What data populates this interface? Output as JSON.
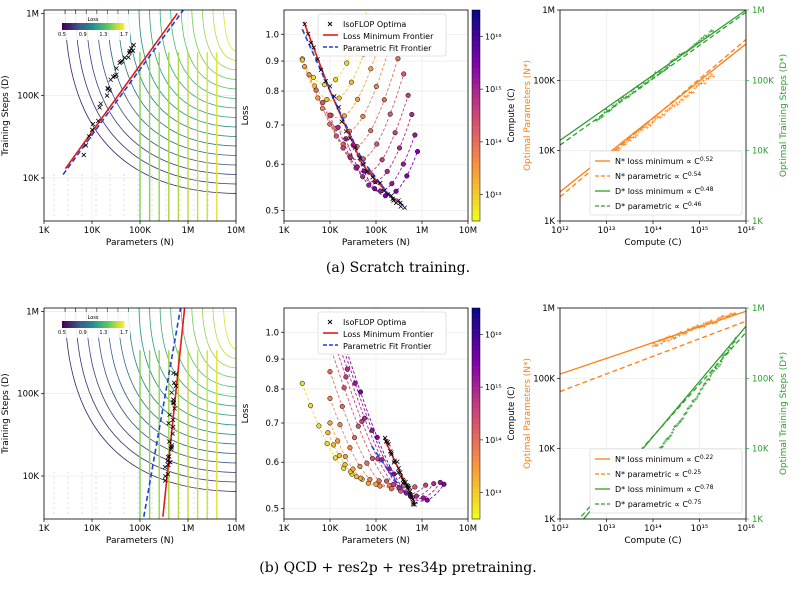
{
  "captions": {
    "a": "(a) Scratch training.",
    "b": "(b) QCD + res2p + res34p pretraining."
  },
  "styles": {
    "red": "#e41a1c",
    "blue": "#1f3fd6",
    "orange": "#ff7f0e",
    "green": "#2ca02c"
  },
  "chart_data": [
    {
      "id": "a-left",
      "type": "contour",
      "xlabel": "Parameters (N)",
      "ylabel": "Training Steps (D)",
      "xscale": "log",
      "yscale": "log",
      "xlim": [
        1000,
        10000000
      ],
      "ylim": [
        3000,
        1100000
      ],
      "xticks": [
        {
          "v": 1000,
          "t": "1K"
        },
        {
          "v": 10000,
          "t": "10K"
        },
        {
          "v": 100000,
          "t": "100K"
        },
        {
          "v": 1000000,
          "t": "1M"
        },
        {
          "v": 10000000,
          "t": "10M"
        }
      ],
      "yticks": [
        {
          "v": 10000,
          "t": "10K"
        },
        {
          "v": 100000,
          "t": "100K"
        },
        {
          "v": 1000000,
          "t": "1M"
        }
      ],
      "colorbar": {
        "title": "Loss",
        "ticks": [
          "0.5",
          "0.9",
          "1.3",
          "1.7"
        ]
      },
      "frontier_red": [
        [
          2800,
          13000
        ],
        [
          600000,
          1000000
        ]
      ],
      "frontier_blue": [
        [
          2500,
          11000
        ],
        [
          800000,
          1100000
        ]
      ],
      "points_center": [
        [
          6000,
          20000
        ],
        [
          20000,
          100000
        ],
        [
          40000,
          250000
        ],
        [
          80000,
          400000
        ]
      ]
    },
    {
      "id": "a-mid",
      "type": "scatter",
      "xlabel": "Parameters (N)",
      "ylabel": "Loss",
      "xscale": "log",
      "yscale": "log",
      "xlim": [
        1000,
        10000000
      ],
      "ylim": [
        0.48,
        1.1
      ],
      "xticks": [
        {
          "v": 1000,
          "t": "1K"
        },
        {
          "v": 10000,
          "t": "10K"
        },
        {
          "v": 100000,
          "t": "100K"
        },
        {
          "v": 1000000,
          "t": "1M"
        },
        {
          "v": 10000000,
          "t": "10M"
        }
      ],
      "yticks": [
        {
          "v": 0.5,
          "t": "0.5"
        },
        {
          "v": 0.6,
          "t": "0.6"
        },
        {
          "v": 0.7,
          "t": "0.7"
        },
        {
          "v": 0.8,
          "t": "0.8"
        },
        {
          "v": 0.9,
          "t": "0.9"
        },
        {
          "v": 1.0,
          "t": "1.0"
        }
      ],
      "legend": [
        "IsoFLOP Optima",
        "Loss Minimum Frontier",
        "Parametric Fit Frontier"
      ],
      "colorbar": {
        "title": "Compute (C)",
        "ticks": [
          "10¹³",
          "10¹⁴",
          "10¹⁵",
          "10¹⁶"
        ],
        "range_exp": [
          12.5,
          16.5
        ]
      },
      "frontier_red": [
        [
          2700,
          1.05
        ],
        [
          10000,
          0.8
        ],
        [
          50000,
          0.6
        ],
        [
          200000,
          0.53
        ],
        [
          400000,
          0.51
        ]
      ],
      "frontier_blue": [
        [
          2500,
          1.02
        ],
        [
          10000,
          0.8
        ],
        [
          50000,
          0.61
        ],
        [
          200000,
          0.53
        ],
        [
          400000,
          0.51
        ]
      ],
      "isoflops": [
        {
          "c": 12.8,
          "x0": 2500,
          "x1": 70000,
          "xmin": 8000,
          "ymin": 0.82,
          "k": 0.42
        },
        {
          "c": 13.1,
          "x0": 2500,
          "x1": 100000,
          "xmin": 11000,
          "ymin": 0.77,
          "k": 0.42
        },
        {
          "c": 13.4,
          "x0": 2800,
          "x1": 150000,
          "xmin": 15000,
          "ymin": 0.72,
          "k": 0.42
        },
        {
          "c": 13.7,
          "x0": 3500,
          "x1": 200000,
          "xmin": 21000,
          "ymin": 0.68,
          "k": 0.42
        },
        {
          "c": 14.0,
          "x0": 5000,
          "x1": 300000,
          "xmin": 30000,
          "ymin": 0.64,
          "k": 0.42
        },
        {
          "c": 14.3,
          "x0": 7000,
          "x1": 400000,
          "xmin": 42000,
          "ymin": 0.61,
          "k": 0.42
        },
        {
          "c": 14.6,
          "x0": 10000,
          "x1": 500000,
          "xmin": 60000,
          "ymin": 0.58,
          "k": 0.42
        },
        {
          "c": 14.9,
          "x0": 15000,
          "x1": 600000,
          "xmin": 85000,
          "ymin": 0.56,
          "k": 0.42
        },
        {
          "c": 15.2,
          "x0": 22000,
          "x1": 700000,
          "xmin": 120000,
          "ymin": 0.54,
          "k": 0.42
        },
        {
          "c": 15.5,
          "x0": 32000,
          "x1": 800000,
          "xmin": 170000,
          "ymin": 0.53,
          "k": 0.42
        }
      ]
    },
    {
      "id": "a-right",
      "type": "line",
      "xlabel": "Compute (C)",
      "ylabel": "Optimal Parameters (N*)",
      "ylabel_right": "Optimal Training Steps (D*)",
      "xscale": "log",
      "yscale": "log",
      "xlim": [
        1000000000000,
        10000000000000000
      ],
      "ylim": [
        1000,
        1000000
      ],
      "xticks": [
        {
          "v": 1000000000000,
          "t": "10¹²"
        },
        {
          "v": 10000000000000,
          "t": "10¹³"
        },
        {
          "v": 100000000000000,
          "t": "10¹⁴"
        },
        {
          "v": 1000000000000000,
          "t": "10¹⁵"
        },
        {
          "v": 10000000000000000,
          "t": "10¹⁶"
        }
      ],
      "yticks": [
        {
          "v": 1000,
          "t": "1K"
        },
        {
          "v": 10000,
          "t": "10K"
        },
        {
          "v": 100000,
          "t": "100K"
        },
        {
          "v": 1000000,
          "t": "1M"
        }
      ],
      "yticks_right": [
        {
          "v": 1000,
          "t": "1K"
        },
        {
          "v": 10000,
          "t": "10K"
        },
        {
          "v": 100000,
          "t": "100K"
        },
        {
          "v": 1000000,
          "t": "1M"
        }
      ],
      "legend": [
        {
          "label": "N* loss minimum  ∝ C",
          "exp": "0.52",
          "color": "orange",
          "dash": false
        },
        {
          "label": "N* parametric  ∝ C",
          "exp": "0.54",
          "color": "orange",
          "dash": true
        },
        {
          "label": "D* loss minimum  ∝ C",
          "exp": "0.48",
          "color": "green",
          "dash": false
        },
        {
          "label": "D* parametric  ∝ C",
          "exp": "0.46",
          "color": "green",
          "dash": true
        }
      ],
      "series": [
        {
          "color": "orange",
          "dash": false,
          "points": [
            [
              1000000000000,
              2600
            ],
            [
              10000000000000000,
              330000
            ]
          ]
        },
        {
          "color": "orange",
          "dash": true,
          "points": [
            [
              1000000000000,
              2200
            ],
            [
              10000000000000000,
              380000
            ]
          ]
        },
        {
          "color": "green",
          "dash": false,
          "points": [
            [
              1000000000000,
              14000
            ],
            [
              10000000000000000,
              1000000
            ]
          ]
        },
        {
          "color": "green",
          "dash": true,
          "points": [
            [
              1000000000000,
              12000
            ],
            [
              10000000000000000,
              930000
            ]
          ]
        }
      ],
      "scatter": [
        {
          "color": "orange",
          "from": [
            6000000000000,
            6000
          ],
          "to": [
            2000000000000000,
            120000
          ]
        },
        {
          "color": "green",
          "from": [
            6000000000000,
            28000
          ],
          "to": [
            2000000000000000,
            500000
          ]
        }
      ]
    },
    {
      "id": "b-left",
      "type": "contour",
      "xlabel": "Parameters (N)",
      "ylabel": "Training Steps (D)",
      "xscale": "log",
      "yscale": "log",
      "xlim": [
        1000,
        10000000
      ],
      "ylim": [
        3000,
        1100000
      ],
      "xticks": [
        {
          "v": 1000,
          "t": "1K"
        },
        {
          "v": 10000,
          "t": "10K"
        },
        {
          "v": 100000,
          "t": "100K"
        },
        {
          "v": 1000000,
          "t": "1M"
        },
        {
          "v": 10000000,
          "t": "10M"
        }
      ],
      "yticks": [
        {
          "v": 10000,
          "t": "10K"
        },
        {
          "v": 100000,
          "t": "100K"
        },
        {
          "v": 1000000,
          "t": "1M"
        }
      ],
      "colorbar": {
        "title": "Loss",
        "ticks": [
          "0.5",
          "0.9",
          "1.3",
          "1.7"
        ]
      },
      "frontier_red": [
        [
          300000,
          3200
        ],
        [
          850000,
          1100000
        ]
      ],
      "frontier_blue": [
        [
          120000,
          3200
        ],
        [
          700000,
          1100000
        ]
      ],
      "points_center": [
        [
          350000,
          8000
        ],
        [
          400000,
          20000
        ],
        [
          460000,
          60000
        ],
        [
          520000,
          200000
        ]
      ]
    },
    {
      "id": "b-mid",
      "type": "scatter",
      "xlabel": "Parameters (N)",
      "ylabel": "Loss",
      "xscale": "log",
      "yscale": "log",
      "xlim": [
        1000,
        10000000
      ],
      "ylim": [
        0.48,
        1.1
      ],
      "xticks": [
        {
          "v": 1000,
          "t": "1K"
        },
        {
          "v": 10000,
          "t": "10K"
        },
        {
          "v": 100000,
          "t": "100K"
        },
        {
          "v": 1000000,
          "t": "1M"
        },
        {
          "v": 10000000,
          "t": "10M"
        }
      ],
      "yticks": [
        {
          "v": 0.5,
          "t": "0.5"
        },
        {
          "v": 0.6,
          "t": "0.6"
        },
        {
          "v": 0.7,
          "t": "0.7"
        },
        {
          "v": 0.8,
          "t": "0.8"
        },
        {
          "v": 0.9,
          "t": "0.9"
        },
        {
          "v": 1.0,
          "t": "1.0"
        }
      ],
      "legend": [
        "IsoFLOP Optima",
        "Loss Minimum Frontier",
        "Parametric Fit Frontier"
      ],
      "colorbar": {
        "title": "Compute (C)",
        "ticks": [
          "10¹³",
          "10¹⁴",
          "10¹⁵",
          "10¹⁶"
        ],
        "range_exp": [
          12.5,
          16.5
        ]
      },
      "frontier_red": [
        [
          150000,
          0.66
        ],
        [
          400000,
          0.56
        ],
        [
          700000,
          0.51
        ]
      ],
      "frontier_blue": [
        [
          80000,
          0.64
        ],
        [
          300000,
          0.55
        ],
        [
          800000,
          0.51
        ]
      ],
      "isoflops": [
        {
          "c": 12.8,
          "x0": 2500,
          "x1": 30000,
          "xmin": 40000,
          "ymin": 0.57,
          "k": 0.3
        },
        {
          "c": 13.1,
          "x0": 9000,
          "x1": 50000,
          "xmin": 60000,
          "ymin": 0.56,
          "k": 0.3
        },
        {
          "c": 13.4,
          "x0": 10000,
          "x1": 100000,
          "xmin": 90000,
          "ymin": 0.55,
          "k": 0.3
        },
        {
          "c": 13.7,
          "x0": 10000,
          "x1": 200000,
          "xmin": 150000,
          "ymin": 0.545,
          "k": 0.3
        },
        {
          "c": 14.0,
          "x0": 10000,
          "x1": 400000,
          "xmin": 250000,
          "ymin": 0.54,
          "k": 0.3
        },
        {
          "c": 14.3,
          "x0": 10000,
          "x1": 700000,
          "xmin": 400000,
          "ymin": 0.535,
          "k": 0.3
        },
        {
          "c": 14.6,
          "x0": 10000,
          "x1": 1200000,
          "xmin": 550000,
          "ymin": 0.53,
          "k": 0.3
        },
        {
          "c": 14.9,
          "x0": 10000,
          "x1": 1800000,
          "xmin": 700000,
          "ymin": 0.525,
          "k": 0.3
        },
        {
          "c": 15.2,
          "x0": 15000,
          "x1": 2500000,
          "xmin": 850000,
          "ymin": 0.52,
          "k": 0.3
        },
        {
          "c": 15.5,
          "x0": 20000,
          "x1": 3000000,
          "xmin": 1000000,
          "ymin": 0.515,
          "k": 0.3
        }
      ]
    },
    {
      "id": "b-right",
      "type": "line",
      "xlabel": "Compute (C)",
      "ylabel": "Optimal Parameters (N*)",
      "ylabel_right": "Optimal Training Steps (D*)",
      "xscale": "log",
      "yscale": "log",
      "xlim": [
        1000000000000,
        10000000000000000
      ],
      "ylim": [
        1000,
        1000000
      ],
      "xticks": [
        {
          "v": 1000000000000,
          "t": "10¹²"
        },
        {
          "v": 10000000000000,
          "t": "10¹³"
        },
        {
          "v": 100000000000000,
          "t": "10¹⁴"
        },
        {
          "v": 1000000000000000,
          "t": "10¹⁵"
        },
        {
          "v": 10000000000000000,
          "t": "10¹⁶"
        }
      ],
      "yticks": [
        {
          "v": 1000,
          "t": "1K"
        },
        {
          "v": 10000,
          "t": "10K"
        },
        {
          "v": 100000,
          "t": "100K"
        },
        {
          "v": 1000000,
          "t": "1M"
        }
      ],
      "yticks_right": [
        {
          "v": 1000,
          "t": "1K"
        },
        {
          "v": 10000,
          "t": "10K"
        },
        {
          "v": 100000,
          "t": "100K"
        },
        {
          "v": 1000000,
          "t": "1M"
        }
      ],
      "legend": [
        {
          "label": "N* loss minimum  ∝ C",
          "exp": "0.22",
          "color": "orange",
          "dash": false
        },
        {
          "label": "N* parametric  ∝ C",
          "exp": "0.25",
          "color": "orange",
          "dash": true
        },
        {
          "label": "D* loss minimum  ∝ C",
          "exp": "0.78",
          "color": "green",
          "dash": false
        },
        {
          "label": "D* parametric  ∝ C",
          "exp": "0.75",
          "color": "green",
          "dash": true
        }
      ],
      "series": [
        {
          "color": "orange",
          "dash": false,
          "points": [
            [
              1000000000000,
              115000
            ],
            [
              10000000000000000,
              900000
            ]
          ]
        },
        {
          "color": "orange",
          "dash": true,
          "points": [
            [
              1000000000000,
              65000
            ],
            [
              10000000000000000,
              650000
            ]
          ]
        },
        {
          "color": "green",
          "dash": false,
          "points": [
            [
              1000000000000,
              400
            ],
            [
              10000000000000000,
              550000
            ]
          ]
        },
        {
          "color": "green",
          "dash": true,
          "points": [
            [
              1000000000000,
              500
            ],
            [
              10000000000000000,
              450000
            ]
          ]
        }
      ],
      "scatter": [
        {
          "color": "orange",
          "from": [
            100000000000000,
            300000
          ],
          "to": [
            6000000000000000,
            850000
          ]
        },
        {
          "color": "green",
          "from": [
            100000000000000,
            7000
          ],
          "to": [
            6000000000000000,
            350000
          ]
        }
      ]
    }
  ]
}
